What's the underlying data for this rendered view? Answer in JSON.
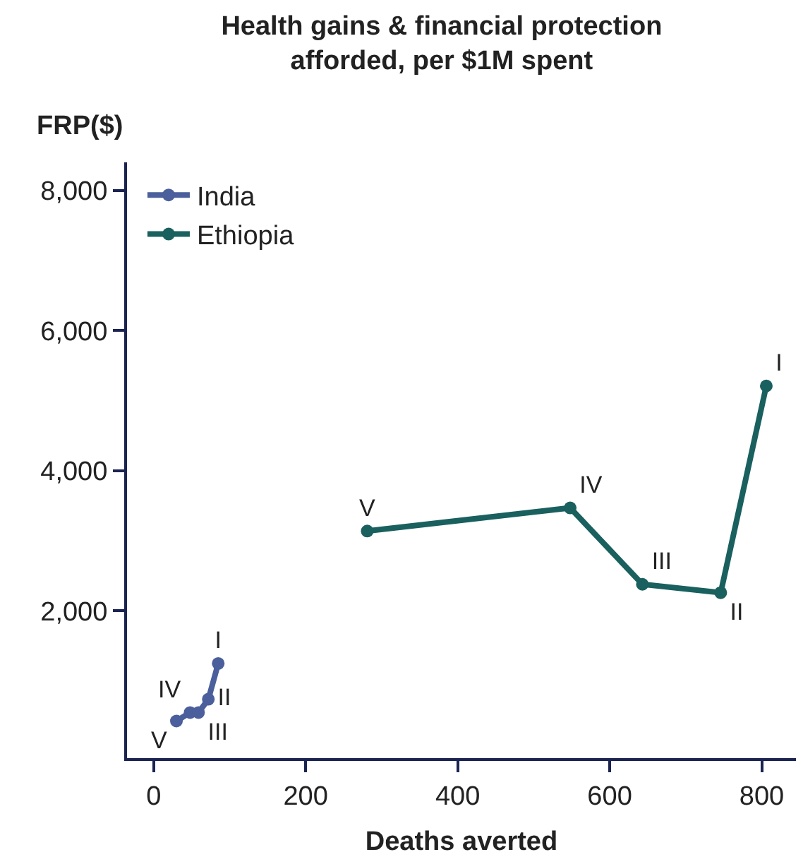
{
  "chart_data": {
    "type": "line",
    "title": "Health gains & financial protection\nafforded, per $1M spent",
    "xlabel": "Deaths averted",
    "ylabel": "FRP($)",
    "xlim": [
      -35,
      845
    ],
    "xticks": [
      {
        "value": 0,
        "label": "0"
      },
      {
        "value": 200,
        "label": "200"
      },
      {
        "value": 400,
        "label": "400"
      },
      {
        "value": 600,
        "label": "600"
      },
      {
        "value": 800,
        "label": "800"
      }
    ],
    "ylim": [
      -100,
      8400
    ],
    "yticks": [
      {
        "value": 2000,
        "label": "2,000"
      },
      {
        "value": 4000,
        "label": "4,000"
      },
      {
        "value": 6000,
        "label": "6,000"
      },
      {
        "value": 8000,
        "label": "8,000"
      }
    ],
    "series": [
      {
        "name": "India",
        "color": "#4a5f9b",
        "x": [
          30,
          48,
          59,
          72,
          85
        ],
        "values": [
          430,
          550,
          550,
          740,
          1250
        ],
        "value_labels": [
          "V",
          "IV",
          "III",
          "II",
          "I"
        ]
      },
      {
        "name": "Ethiopia",
        "color": "#19605f",
        "x": [
          281,
          548,
          643,
          746,
          806
        ],
        "values": [
          3140,
          3470,
          2380,
          2260,
          5210
        ],
        "value_labels": [
          "V",
          "IV",
          "III",
          "II",
          "I"
        ]
      }
    ],
    "marker": "circle",
    "line_style": "solid",
    "grid": false,
    "legend": "top left"
  }
}
